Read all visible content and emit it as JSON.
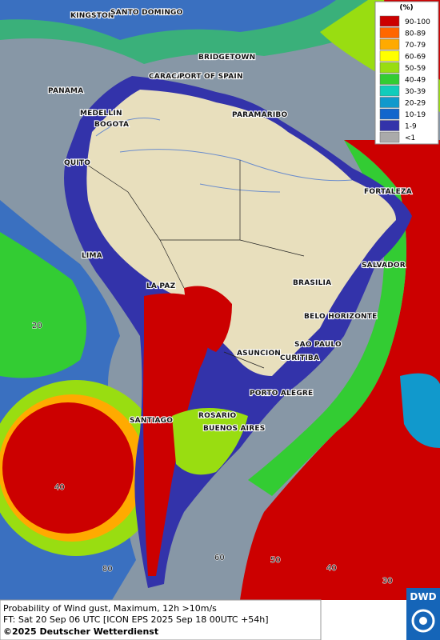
{
  "legend": {
    "title": "(%)",
    "items": [
      {
        "label": "90-100",
        "color": "#cc0000"
      },
      {
        "label": "80-89",
        "color": "#ff6600"
      },
      {
        "label": "70-79",
        "color": "#ffaa00"
      },
      {
        "label": "60-69",
        "color": "#ffff00"
      },
      {
        "label": "50-59",
        "color": "#99dd11"
      },
      {
        "label": "40-49",
        "color": "#33cc33"
      },
      {
        "label": "30-39",
        "color": "#11ccbb"
      },
      {
        "label": "20-29",
        "color": "#1199cc"
      },
      {
        "label": "10-19",
        "color": "#1166cc"
      },
      {
        "label": "1-9",
        "color": "#3333aa"
      },
      {
        "label": "<1",
        "color": "#aaaaaa"
      }
    ]
  },
  "cities": [
    "KINGSTON",
    "SANTO DOMINGO",
    "BRIDGETOWN",
    "CARACAS",
    "PORT OF SPAIN",
    "PANAMA",
    "PARAMARIBO",
    "MEDELLIN",
    "BOGOTA",
    "QUITO",
    "FORTALEZA",
    "LIMA",
    "SALVADOR",
    "LA PAZ",
    "BRASILIA",
    "BELO HORIZONTE",
    "ASUNCION",
    "SAO PAULO",
    "CURITIBA",
    "PORTO ALEGRE",
    "SANTIAGO",
    "ROSARIO",
    "BUENOS AIRES"
  ],
  "grid_labels": [
    "20",
    "40",
    "80",
    "60",
    "50",
    "40",
    "30"
  ],
  "footer": {
    "line1": "Probability of Wind gust, Maximum, 12h >10m/s",
    "line2": "FT: Sat 20 Sep 06 UTC [ICON EPS 2025 Sep 18 00UTC +54h]",
    "line3": "©2025 Deutscher Wetterdienst"
  },
  "logo": "DWD"
}
